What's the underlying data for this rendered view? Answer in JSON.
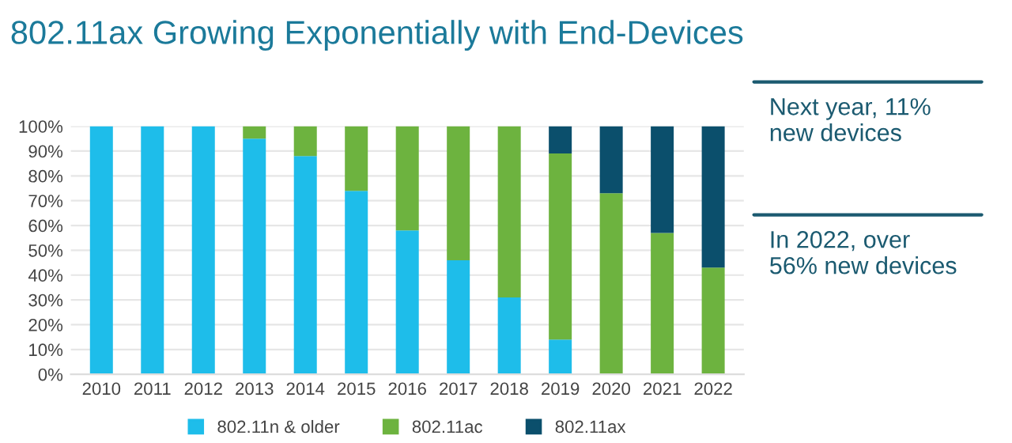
{
  "chart_data": {
    "type": "bar",
    "title": "802.11ax Growing Exponentially with End-Devices",
    "stacked": true,
    "categories": [
      "2010",
      "2011",
      "2012",
      "2013",
      "2014",
      "2015",
      "2016",
      "2017",
      "2018",
      "2019",
      "2020",
      "2021",
      "2022"
    ],
    "series": [
      {
        "name": "802.11n & older",
        "color": "#1ebdea",
        "values": [
          100,
          100,
          100,
          95,
          88,
          74,
          58,
          46,
          31,
          14,
          0,
          0,
          0
        ]
      },
      {
        "name": "802.11ac",
        "color": "#6db33f",
        "values": [
          0,
          0,
          0,
          5,
          12,
          26,
          42,
          54,
          69,
          75,
          73,
          57,
          43
        ]
      },
      {
        "name": "802.11ax",
        "color": "#0b4f6c",
        "values": [
          0,
          0,
          0,
          0,
          0,
          0,
          0,
          0,
          0,
          11,
          27,
          43,
          57
        ]
      }
    ],
    "ylim": [
      0,
      100
    ],
    "yticks": [
      {
        "value": 0,
        "label": "0%"
      },
      {
        "value": 10,
        "label": "10%"
      },
      {
        "value": 20,
        "label": "20%"
      },
      {
        "value": 30,
        "label": "30%"
      },
      {
        "value": 40,
        "label": "40%"
      },
      {
        "value": 50,
        "label": "50%"
      },
      {
        "value": 60,
        "label": "60%"
      },
      {
        "value": 70,
        "label": "70%"
      },
      {
        "value": 80,
        "label": "80%"
      },
      {
        "value": 90,
        "label": "90%"
      },
      {
        "value": 100,
        "label": "100%"
      }
    ],
    "grid": "y",
    "legend": "bottom",
    "annotations": [
      "Next year, 11%\nnew devices",
      "In 2022, over\n56% new devices"
    ]
  }
}
